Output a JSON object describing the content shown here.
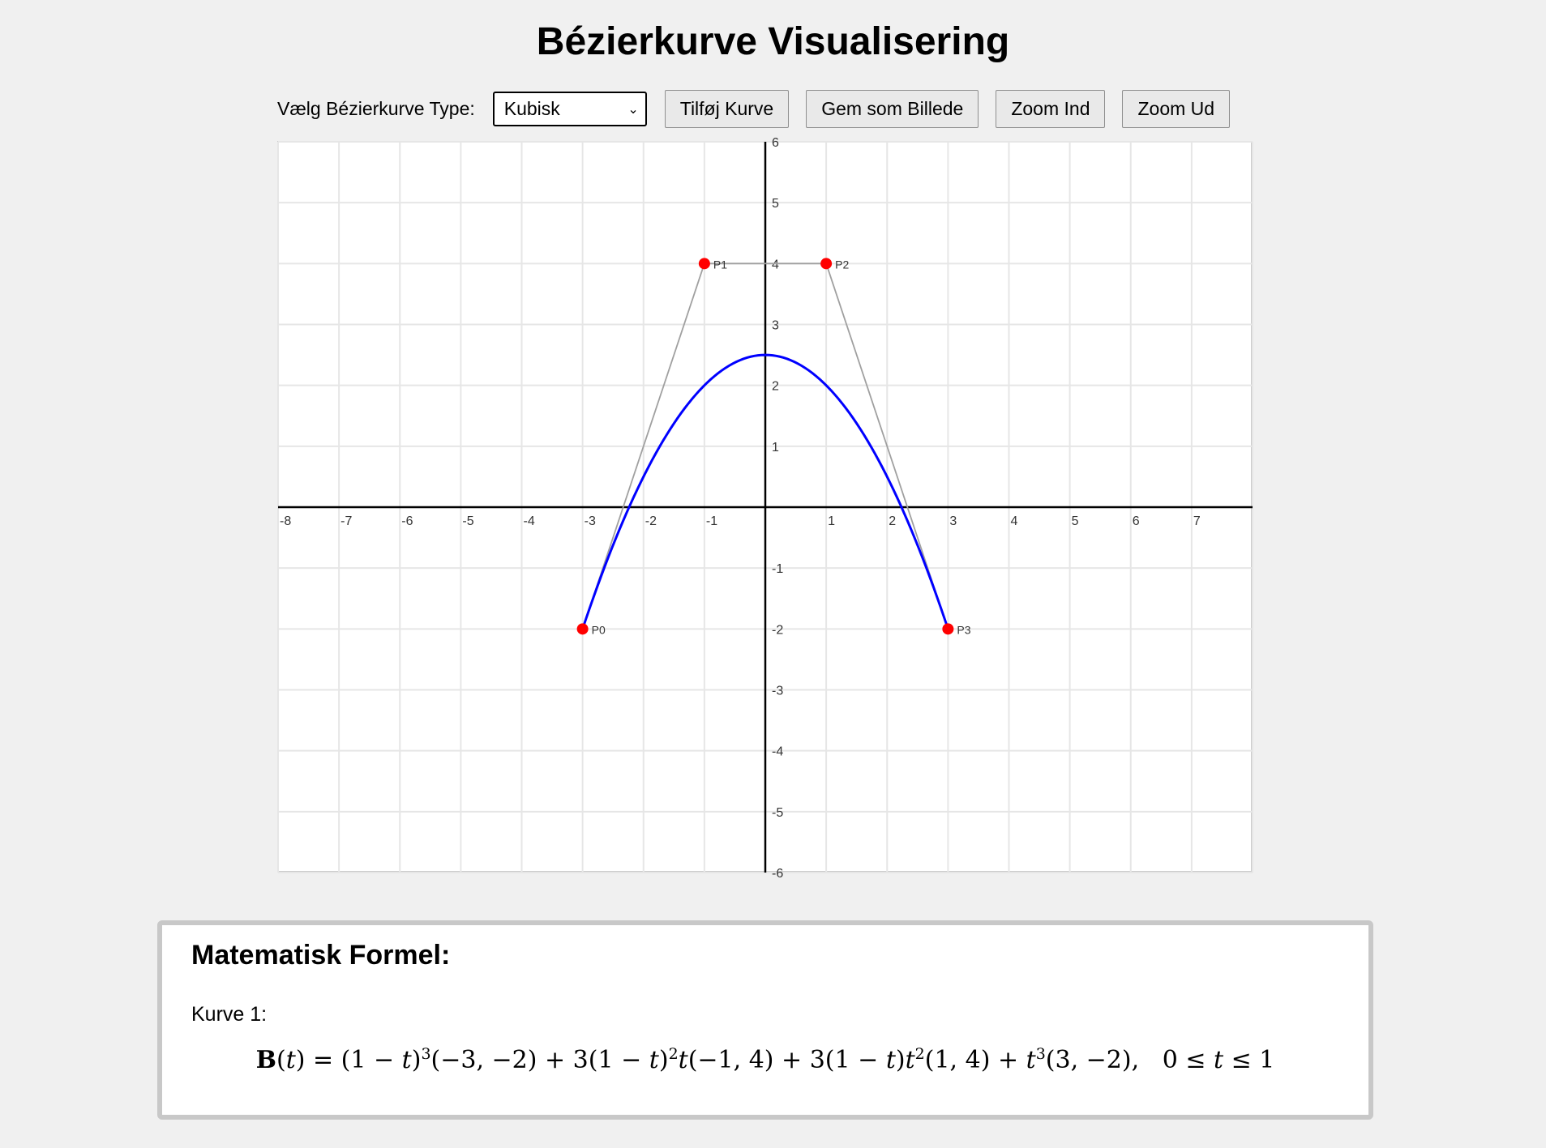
{
  "title": "Bézierkurve Visualisering",
  "controls": {
    "type_label": "Vælg Bézierkurve Type:",
    "type_selected": "Kubisk",
    "add_curve": "Tilføj Kurve",
    "save_image": "Gem som Billede",
    "zoom_in": "Zoom Ind",
    "zoom_out": "Zoom Ud"
  },
  "chart_data": {
    "type": "scatter",
    "xlim": [
      -8,
      8
    ],
    "ylim": [
      -6,
      6
    ],
    "grid": true,
    "x_ticks": [
      -8,
      -7,
      -6,
      -5,
      -4,
      -3,
      -2,
      -1,
      1,
      2,
      3,
      4,
      5,
      6,
      7
    ],
    "y_ticks": [
      6,
      5,
      4,
      3,
      2,
      1,
      -1,
      -2,
      -3,
      -4,
      -5,
      -6
    ],
    "control_points": [
      {
        "label": "P0",
        "x": -3,
        "y": -2
      },
      {
        "label": "P1",
        "x": -1,
        "y": 4
      },
      {
        "label": "P2",
        "x": 1,
        "y": 4
      },
      {
        "label": "P3",
        "x": 3,
        "y": -2
      }
    ],
    "curve_color": "#0000ff",
    "point_color": "#ff0000",
    "polygon_color": "#a0a0a0"
  },
  "formula": {
    "heading": "Matematisk Formel:",
    "curve_label": "Kurve 1:"
  }
}
